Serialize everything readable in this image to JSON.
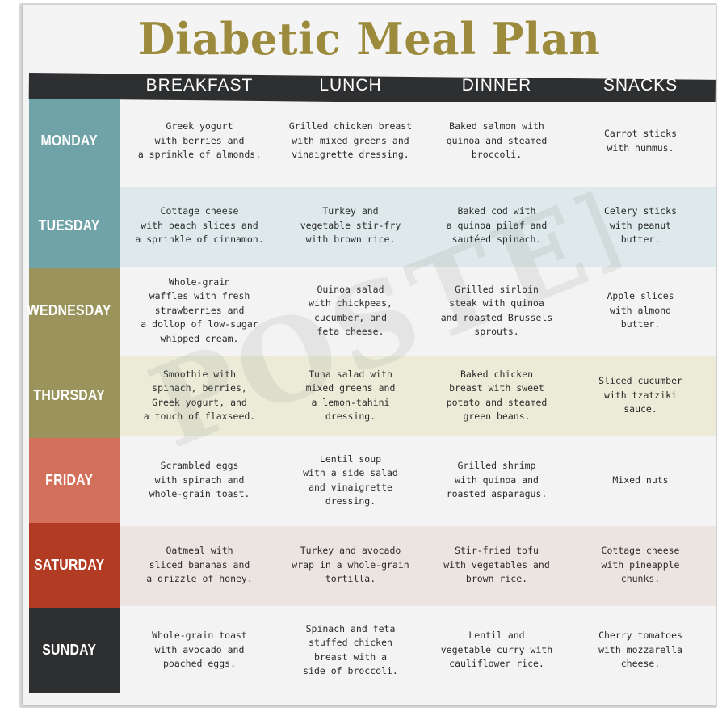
{
  "title": "Diabetic Meal Plan",
  "columns": [
    "BREAKFAST",
    "LUNCH",
    "DINNER",
    "SNACKS"
  ],
  "watermark": "POSTER",
  "colors": {
    "title": "#9c8a3d",
    "header_bar": "#2e2f31"
  },
  "rows": [
    {
      "day": "MONDAY",
      "color": "#6fa3a8",
      "band": "#f3f3f3",
      "meals": [
        "Greek yogurt\nwith berries and\na sprinkle of almonds.",
        "Grilled chicken breast\nwith mixed greens and\nvinaigrette dressing.",
        "Baked salmon with\nquinoa and steamed\nbroccoli.",
        "Carrot sticks\nwith hummus."
      ]
    },
    {
      "day": "TUESDAY",
      "color": "#6fa3a8",
      "band": "#dde9ea",
      "meals": [
        "Cottage cheese\nwith peach slices and\na sprinkle of cinnamon.",
        "Turkey and\nvegetable stir-fry\nwith brown rice.",
        "Baked cod with\na quinoa pilaf and\nsautéed spinach.",
        "Celery sticks\nwith peanut\nbutter."
      ]
    },
    {
      "day": "WEDNESDAY",
      "color": "#9a945c",
      "band": "#f3f3f3",
      "meals": [
        "Whole-grain\nwaffles with fresh\nstrawberries and\na dollop of low-sugar\nwhipped cream.",
        "Quinoa salad\nwith chickpeas,\ncucumber, and\nfeta cheese.",
        "Grilled sirloin\nsteak with quinoa\nand roasted Brussels\nsprouts.",
        "Apple slices\nwith almond\nbutter."
      ]
    },
    {
      "day": "THURSDAY",
      "color": "#9a945c",
      "band": "#ebebd8",
      "meals": [
        "Smoothie with\nspinach, berries,\nGreek yogurt, and\na touch of flaxseed.",
        "Tuna salad with\nmixed greens and\na lemon-tahini\ndressing.",
        "Baked chicken\nbreast with sweet\npotato and steamed\ngreen beans.",
        "Sliced cucumber\nwith tzatziki\nsauce."
      ]
    },
    {
      "day": "FRIDAY",
      "color": "#d3705c",
      "band": "#f3f3f3",
      "meals": [
        "Scrambled eggs\nwith spinach and\nwhole-grain toast.",
        "Lentil soup\nwith a side salad\nand vinaigrette\ndressing.",
        "Grilled shrimp\nwith quinoa and\nroasted asparagus.",
        "Mixed nuts"
      ]
    },
    {
      "day": "SATURDAY",
      "color": "#b23b23",
      "band": "#ebe4e0",
      "meals": [
        "Oatmeal with\nsliced bananas and\na drizzle of honey.",
        "Turkey and avocado\nwrap in a whole-grain\ntortilla.",
        "Stir-fried tofu\nwith vegetables and\nbrown rice.",
        "Cottage cheese\nwith pineapple\nchunks."
      ]
    },
    {
      "day": "SUNDAY",
      "color": "#2e2f31",
      "band": "#f3f3f3",
      "meals": [
        "Whole-grain toast\nwith avocado and\npoached eggs.",
        "Spinach and feta\nstuffed chicken\nbreast with a\nside of broccoli.",
        "Lentil and\nvegetable curry with\ncauliflower rice.",
        "Cherry tomatoes\nwith mozzarella\ncheese."
      ]
    }
  ]
}
